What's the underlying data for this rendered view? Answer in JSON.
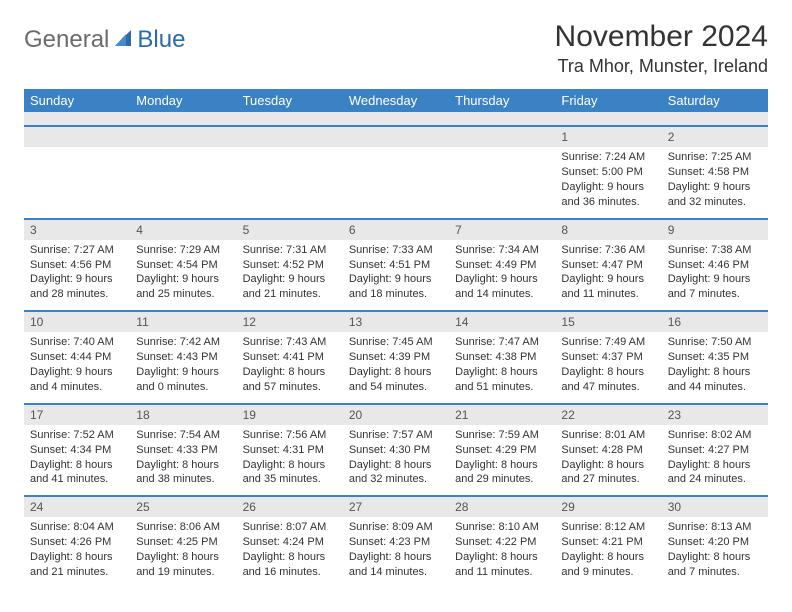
{
  "logo": {
    "general": "General",
    "blue": "Blue"
  },
  "title": "November 2024",
  "location": "Tra Mhor, Munster, Ireland",
  "colors": {
    "header_bg": "#3b82c4",
    "header_text": "#ffffff",
    "daynum_bg": "#e8e8e8",
    "border": "#3b82c4",
    "text": "#333333",
    "logo_gray": "#6b6b6b",
    "logo_blue": "#2c6aa8"
  },
  "day_headers": [
    "Sunday",
    "Monday",
    "Tuesday",
    "Wednesday",
    "Thursday",
    "Friday",
    "Saturday"
  ],
  "weeks": [
    [
      null,
      null,
      null,
      null,
      null,
      {
        "n": "1",
        "sr": "Sunrise: 7:24 AM",
        "ss": "Sunset: 5:00 PM",
        "dl": "Daylight: 9 hours and 36 minutes."
      },
      {
        "n": "2",
        "sr": "Sunrise: 7:25 AM",
        "ss": "Sunset: 4:58 PM",
        "dl": "Daylight: 9 hours and 32 minutes."
      }
    ],
    [
      {
        "n": "3",
        "sr": "Sunrise: 7:27 AM",
        "ss": "Sunset: 4:56 PM",
        "dl": "Daylight: 9 hours and 28 minutes."
      },
      {
        "n": "4",
        "sr": "Sunrise: 7:29 AM",
        "ss": "Sunset: 4:54 PM",
        "dl": "Daylight: 9 hours and 25 minutes."
      },
      {
        "n": "5",
        "sr": "Sunrise: 7:31 AM",
        "ss": "Sunset: 4:52 PM",
        "dl": "Daylight: 9 hours and 21 minutes."
      },
      {
        "n": "6",
        "sr": "Sunrise: 7:33 AM",
        "ss": "Sunset: 4:51 PM",
        "dl": "Daylight: 9 hours and 18 minutes."
      },
      {
        "n": "7",
        "sr": "Sunrise: 7:34 AM",
        "ss": "Sunset: 4:49 PM",
        "dl": "Daylight: 9 hours and 14 minutes."
      },
      {
        "n": "8",
        "sr": "Sunrise: 7:36 AM",
        "ss": "Sunset: 4:47 PM",
        "dl": "Daylight: 9 hours and 11 minutes."
      },
      {
        "n": "9",
        "sr": "Sunrise: 7:38 AM",
        "ss": "Sunset: 4:46 PM",
        "dl": "Daylight: 9 hours and 7 minutes."
      }
    ],
    [
      {
        "n": "10",
        "sr": "Sunrise: 7:40 AM",
        "ss": "Sunset: 4:44 PM",
        "dl": "Daylight: 9 hours and 4 minutes."
      },
      {
        "n": "11",
        "sr": "Sunrise: 7:42 AM",
        "ss": "Sunset: 4:43 PM",
        "dl": "Daylight: 9 hours and 0 minutes."
      },
      {
        "n": "12",
        "sr": "Sunrise: 7:43 AM",
        "ss": "Sunset: 4:41 PM",
        "dl": "Daylight: 8 hours and 57 minutes."
      },
      {
        "n": "13",
        "sr": "Sunrise: 7:45 AM",
        "ss": "Sunset: 4:39 PM",
        "dl": "Daylight: 8 hours and 54 minutes."
      },
      {
        "n": "14",
        "sr": "Sunrise: 7:47 AM",
        "ss": "Sunset: 4:38 PM",
        "dl": "Daylight: 8 hours and 51 minutes."
      },
      {
        "n": "15",
        "sr": "Sunrise: 7:49 AM",
        "ss": "Sunset: 4:37 PM",
        "dl": "Daylight: 8 hours and 47 minutes."
      },
      {
        "n": "16",
        "sr": "Sunrise: 7:50 AM",
        "ss": "Sunset: 4:35 PM",
        "dl": "Daylight: 8 hours and 44 minutes."
      }
    ],
    [
      {
        "n": "17",
        "sr": "Sunrise: 7:52 AM",
        "ss": "Sunset: 4:34 PM",
        "dl": "Daylight: 8 hours and 41 minutes."
      },
      {
        "n": "18",
        "sr": "Sunrise: 7:54 AM",
        "ss": "Sunset: 4:33 PM",
        "dl": "Daylight: 8 hours and 38 minutes."
      },
      {
        "n": "19",
        "sr": "Sunrise: 7:56 AM",
        "ss": "Sunset: 4:31 PM",
        "dl": "Daylight: 8 hours and 35 minutes."
      },
      {
        "n": "20",
        "sr": "Sunrise: 7:57 AM",
        "ss": "Sunset: 4:30 PM",
        "dl": "Daylight: 8 hours and 32 minutes."
      },
      {
        "n": "21",
        "sr": "Sunrise: 7:59 AM",
        "ss": "Sunset: 4:29 PM",
        "dl": "Daylight: 8 hours and 29 minutes."
      },
      {
        "n": "22",
        "sr": "Sunrise: 8:01 AM",
        "ss": "Sunset: 4:28 PM",
        "dl": "Daylight: 8 hours and 27 minutes."
      },
      {
        "n": "23",
        "sr": "Sunrise: 8:02 AM",
        "ss": "Sunset: 4:27 PM",
        "dl": "Daylight: 8 hours and 24 minutes."
      }
    ],
    [
      {
        "n": "24",
        "sr": "Sunrise: 8:04 AM",
        "ss": "Sunset: 4:26 PM",
        "dl": "Daylight: 8 hours and 21 minutes."
      },
      {
        "n": "25",
        "sr": "Sunrise: 8:06 AM",
        "ss": "Sunset: 4:25 PM",
        "dl": "Daylight: 8 hours and 19 minutes."
      },
      {
        "n": "26",
        "sr": "Sunrise: 8:07 AM",
        "ss": "Sunset: 4:24 PM",
        "dl": "Daylight: 8 hours and 16 minutes."
      },
      {
        "n": "27",
        "sr": "Sunrise: 8:09 AM",
        "ss": "Sunset: 4:23 PM",
        "dl": "Daylight: 8 hours and 14 minutes."
      },
      {
        "n": "28",
        "sr": "Sunrise: 8:10 AM",
        "ss": "Sunset: 4:22 PM",
        "dl": "Daylight: 8 hours and 11 minutes."
      },
      {
        "n": "29",
        "sr": "Sunrise: 8:12 AM",
        "ss": "Sunset: 4:21 PM",
        "dl": "Daylight: 8 hours and 9 minutes."
      },
      {
        "n": "30",
        "sr": "Sunrise: 8:13 AM",
        "ss": "Sunset: 4:20 PM",
        "dl": "Daylight: 8 hours and 7 minutes."
      }
    ]
  ]
}
